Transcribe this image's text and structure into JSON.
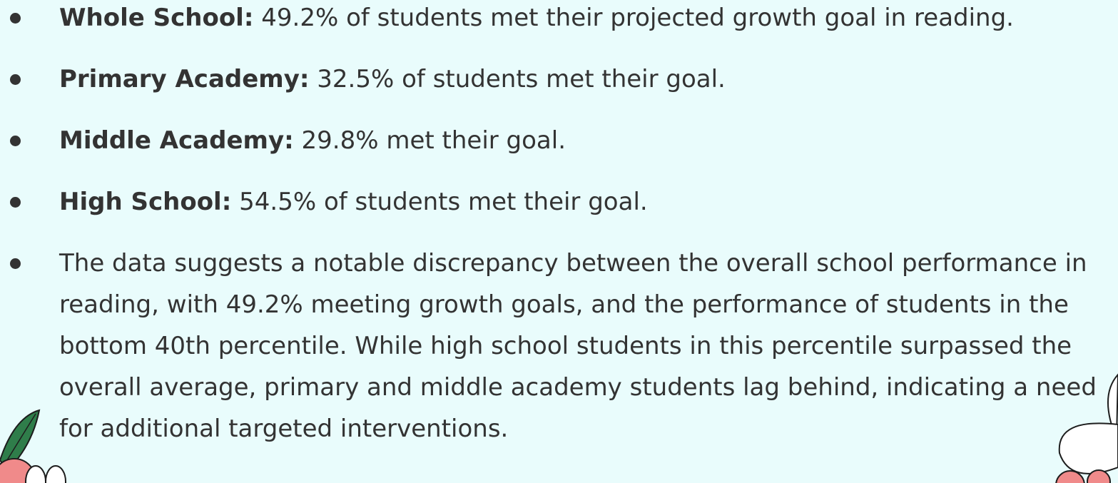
{
  "items": [
    {
      "label": "Whole School:",
      "text": " 49.2% of students met their projected growth goal in reading."
    },
    {
      "label": "Primary Academy:",
      "text": " 32.5% of students met their goal."
    },
    {
      "label": "Middle Academy:",
      "text": " 29.8% met their goal."
    },
    {
      "label": "High School:",
      "text": " 54.5% of students met their goal."
    },
    {
      "text": "The data suggests a notable discrepancy between the overall school performance in reading, with 49.2% meeting growth goals, and the performance of students in the bottom 40th percentile. While high school students in this percentile surpassed the overall average, primary and middle academy students lag behind, indicating a need for additional targeted interventions."
    }
  ]
}
